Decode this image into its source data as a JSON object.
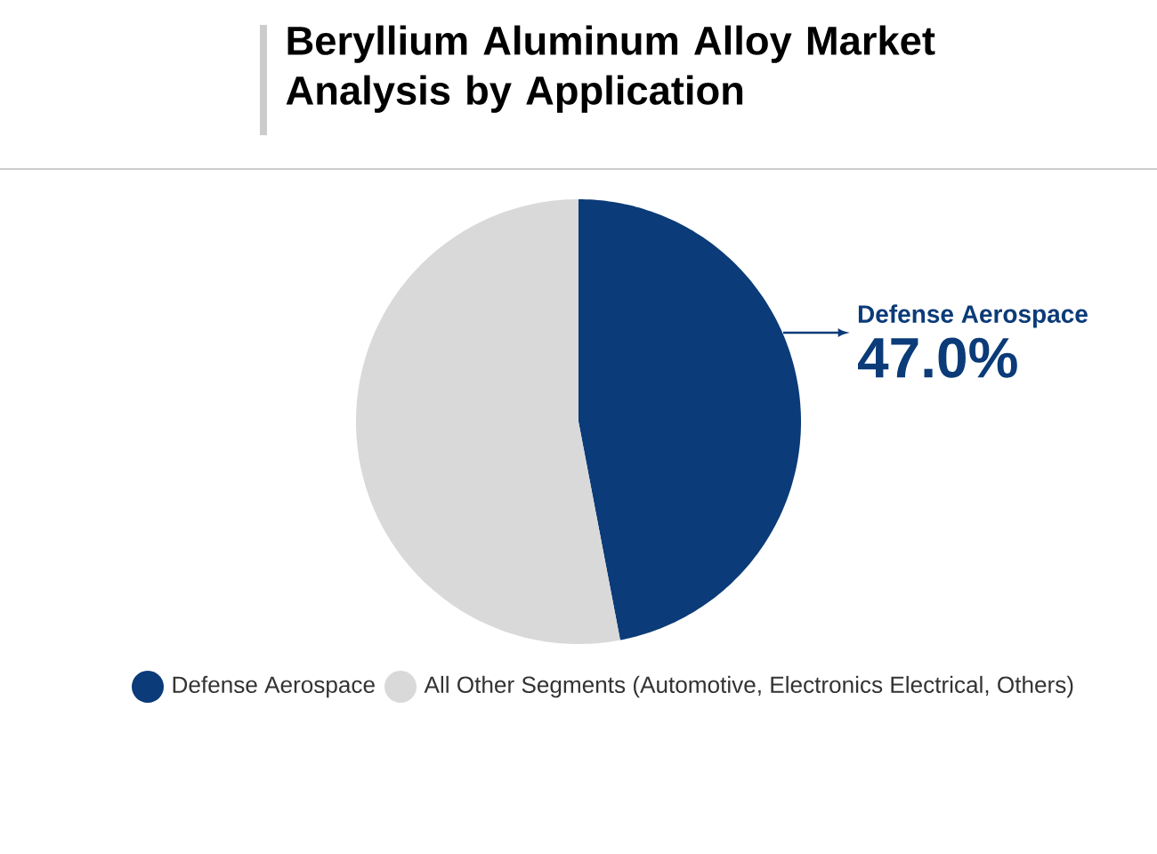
{
  "chart_data": {
    "type": "pie",
    "title": "Beryllium Aluminum Alloy Market Analysis by Application",
    "categories": [
      "Defense Aerospace",
      "All Other Segments (Automotive, Electronics Electrical, Others)"
    ],
    "values": [
      47.0,
      53.0
    ],
    "colors": [
      "#0b3b78",
      "#d9d9d9"
    ],
    "value_labels": [
      "47.0%",
      null
    ],
    "legend": "bottom"
  }
}
